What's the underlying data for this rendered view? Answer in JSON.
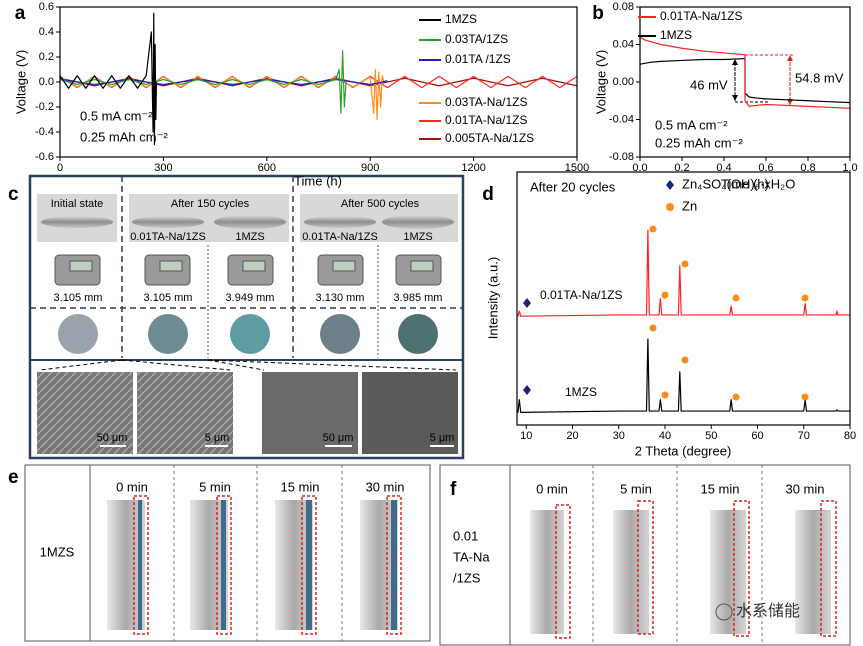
{
  "chart_data": [
    {
      "type": "line",
      "panel_label": "a",
      "x_label": "Time (h)",
      "y_label": "Voltage (V)",
      "xlim": [
        0,
        1500
      ],
      "ylim": [
        -0.6,
        0.6
      ],
      "xticks": [
        0,
        300,
        600,
        900,
        1200,
        1500
      ],
      "yticks": [
        0.6,
        0.4,
        0.2,
        {
          "value": 0,
          "label": "0.0"
        },
        -0.2,
        -0.4,
        -0.6
      ],
      "annotations": [
        "0.5 mA cm⁻²",
        "0.25 mAh cm⁻²"
      ],
      "series": [
        {
          "name": "1MZS",
          "color": "#000000",
          "x": [
            0,
            25,
            50,
            75,
            100,
            125,
            150,
            175,
            200,
            225,
            250,
            265,
            270,
            272,
            274,
            276,
            278,
            280
          ],
          "values": [
            0.05,
            -0.05,
            0.05,
            -0.05,
            0.05,
            -0.05,
            0.05,
            -0.05,
            0.05,
            -0.05,
            0.05,
            0.4,
            -0.4,
            0.55,
            -0.5,
            0.3,
            -0.3,
            0
          ]
        },
        {
          "name": "0.03TA/1ZS",
          "color": "#2ca02c",
          "x": [
            0,
            50,
            100,
            150,
            200,
            250,
            300,
            350,
            400,
            450,
            500,
            550,
            600,
            650,
            700,
            750,
            800,
            810,
            815,
            820,
            825,
            830
          ],
          "values": [
            0.02,
            -0.02,
            0.02,
            -0.02,
            0.02,
            -0.02,
            0.02,
            -0.02,
            0.02,
            -0.02,
            0.02,
            -0.02,
            0.02,
            -0.02,
            0.02,
            -0.02,
            0.02,
            0.1,
            -0.25,
            0.25,
            -0.2,
            0
          ]
        },
        {
          "name": "0.01TA /1ZS",
          "color": "#1f1fc0",
          "x": [
            0,
            100,
            200,
            300,
            400,
            500,
            600,
            700,
            800,
            900,
            950
          ],
          "values": [
            0.02,
            -0.02,
            0.02,
            -0.02,
            0.02,
            -0.02,
            0.02,
            -0.02,
            0.02,
            -0.02,
            0.01
          ]
        },
        {
          "name": "0.03TA-Na/1ZS",
          "color": "#ff8c1a",
          "x": [
            0,
            50,
            100,
            150,
            200,
            250,
            300,
            350,
            400,
            450,
            500,
            550,
            600,
            650,
            700,
            750,
            800,
            850,
            900,
            910,
            915,
            920,
            925,
            930,
            935,
            940
          ],
          "values": [
            0.04,
            -0.04,
            0.04,
            -0.04,
            0.04,
            -0.04,
            0.04,
            -0.04,
            0.04,
            -0.04,
            0.04,
            -0.04,
            0.04,
            -0.04,
            0.04,
            -0.04,
            0.04,
            -0.04,
            0.04,
            -0.25,
            0.1,
            -0.3,
            0.08,
            -0.2,
            0.05,
            0
          ]
        },
        {
          "name": "0.01TA-Na/1ZS",
          "color": "#ff2a1a",
          "x": [
            0,
            50,
            100,
            150,
            200,
            250,
            300,
            350,
            400,
            450,
            500,
            550,
            600,
            650,
            700,
            750,
            800,
            850,
            900,
            950,
            1000,
            1050,
            1100,
            1150,
            1200,
            1250,
            1300,
            1350,
            1400,
            1450,
            1500
          ],
          "values": [
            0.045,
            -0.045,
            0.045,
            -0.045,
            0.045,
            -0.045,
            0.045,
            -0.045,
            0.045,
            -0.045,
            0.045,
            -0.045,
            0.045,
            -0.045,
            0.045,
            -0.045,
            0.045,
            -0.045,
            0.045,
            -0.045,
            0.045,
            -0.045,
            0.045,
            -0.045,
            0.045,
            -0.045,
            0.045,
            -0.045,
            0.045,
            -0.045,
            0.045
          ]
        },
        {
          "name": "0.005TA-Na/1ZS",
          "color": "#a01010",
          "x": [
            0,
            100,
            200,
            300,
            400,
            500,
            600,
            700,
            800,
            900,
            1000,
            1100,
            1200,
            1300,
            1400,
            1500
          ],
          "values": [
            0.03,
            -0.03,
            0.03,
            -0.03,
            0.03,
            -0.03,
            0.03,
            -0.03,
            0.03,
            -0.03,
            0.03,
            -0.03,
            0.03,
            -0.03,
            0.03,
            -0.03
          ]
        }
      ]
    },
    {
      "type": "line",
      "panel_label": "b",
      "x_label": "Time (h)",
      "y_label": "Voltage (V)",
      "xlim": [
        0,
        1
      ],
      "ylim": [
        -0.08,
        0.08
      ],
      "xticks": [
        {
          "value": 0,
          "label": "0.0"
        },
        0.2,
        0.4,
        0.6,
        0.8,
        {
          "value": 1,
          "label": "1.0"
        }
      ],
      "yticks": [
        0.08,
        0.04,
        {
          "value": 0,
          "label": "0.00"
        },
        -0.04,
        -0.08
      ],
      "annotations": [
        "46 mV",
        "54.8 mV",
        "0.5 mA cm⁻²",
        "0.25 mAh cm⁻²"
      ],
      "series": [
        {
          "name": "0.01TA-Na/1ZS",
          "color": "#ff2020",
          "x": [
            0,
            0.02,
            0.05,
            0.1,
            0.2,
            0.3,
            0.4,
            0.5,
            0.5,
            0.52,
            0.55,
            0.6,
            0.7,
            0.8,
            0.9,
            1.0
          ],
          "values": [
            0.048,
            0.045,
            0.043,
            0.04,
            0.036,
            0.033,
            0.031,
            0.029,
            -0.02,
            -0.026,
            -0.025,
            -0.024,
            -0.025,
            -0.026,
            -0.027,
            -0.028
          ]
        },
        {
          "name": "1MZS",
          "color": "#000000",
          "x": [
            0,
            0.05,
            0.1,
            0.2,
            0.3,
            0.4,
            0.5,
            0.5,
            0.52,
            0.55,
            0.6,
            0.7,
            0.8,
            0.9,
            1.0
          ],
          "values": [
            0.019,
            0.021,
            0.022,
            0.023,
            0.024,
            0.024,
            0.025,
            -0.012,
            -0.016,
            -0.017,
            -0.018,
            -0.019,
            -0.02,
            -0.021,
            -0.022
          ]
        }
      ]
    },
    {
      "type": "line",
      "panel_label": "d",
      "x_label": "2 Theta (degree)",
      "y_label": "Intensity (a.u.)",
      "xlim": [
        8,
        80
      ],
      "ylim": [
        0,
        100
      ],
      "xticks": [
        10,
        20,
        30,
        40,
        50,
        60,
        70,
        80
      ],
      "annotations": [
        "After 20 cycles"
      ],
      "markers": [
        {
          "name": "Zn₄SO₄(OH)₆·xH₂O",
          "color": "#1a237e"
        },
        {
          "name": "Zn",
          "color": "#ff8c1a"
        }
      ],
      "series": [
        {
          "name": "0.01TA-Na/1ZS",
          "color": "#ff2020",
          "x": [
            8,
            8.2,
            8.5,
            8.8,
            30,
            36,
            36.3,
            36.6,
            38.7,
            39,
            39.3,
            42.9,
            43.2,
            43.5,
            54,
            54.3,
            54.6,
            70,
            70.3,
            70.6,
            77,
            77.2,
            77.4,
            80
          ],
          "values": [
            43,
            43,
            45,
            43,
            43.5,
            43.5,
            77,
            43.5,
            43.5,
            50,
            43.5,
            43.5,
            63,
            43.5,
            43.5,
            47,
            43.5,
            43.5,
            48,
            43.5,
            43.5,
            45,
            43.5,
            43.5
          ]
        },
        {
          "name": "1MZS",
          "color": "#000000",
          "x": [
            8,
            8.2,
            8.5,
            8.8,
            30,
            36,
            36.3,
            36.6,
            38.7,
            39,
            39.3,
            42.9,
            43.2,
            43.5,
            54,
            54.3,
            54.6,
            70,
            70.3,
            70.6,
            77,
            77.2,
            77.4,
            80
          ],
          "values": [
            5,
            5,
            10,
            5,
            5.5,
            5.5,
            34,
            5.5,
            5.5,
            10,
            5.5,
            5.5,
            21,
            5.5,
            5.5,
            10,
            5.5,
            5.5,
            10,
            5.5,
            5.5,
            6,
            5.5,
            5.5
          ]
        }
      ]
    }
  ],
  "panel_c": {
    "label": "c",
    "groups": [
      "Initial state",
      "After 150 cycles",
      "After 500 cycles"
    ],
    "samples": [
      "0.01TA-Na/1ZS",
      "1MZS",
      "0.01TA-Na/1ZS",
      "1MZS"
    ],
    "thickness": [
      "3.105 mm",
      "3.105 mm",
      "3.949 mm",
      "3.130 mm",
      "3.985 mm"
    ],
    "scale_bars": [
      "50 μm",
      "5 μm",
      "50 μm",
      "5 μm"
    ]
  },
  "panel_e": {
    "label": "e",
    "times": [
      "0 min",
      "5 min",
      "15 min",
      "30 min"
    ],
    "sample": "1MZS"
  },
  "panel_f": {
    "label": "f",
    "times": [
      "0 min",
      "5 min",
      "15 min",
      "30 min"
    ],
    "sample": [
      "0.01",
      "TA-Na",
      "/1ZS"
    ]
  },
  "watermark": "水系储能"
}
